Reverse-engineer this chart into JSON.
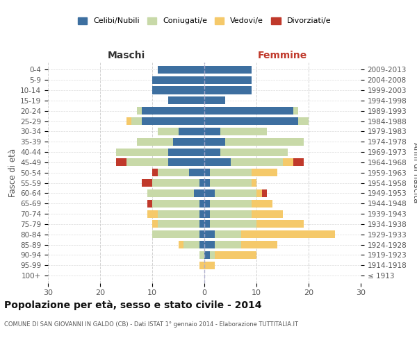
{
  "age_groups": [
    "100+",
    "95-99",
    "90-94",
    "85-89",
    "80-84",
    "75-79",
    "70-74",
    "65-69",
    "60-64",
    "55-59",
    "50-54",
    "45-49",
    "40-44",
    "35-39",
    "30-34",
    "25-29",
    "20-24",
    "15-19",
    "10-14",
    "5-9",
    "0-4"
  ],
  "birth_years": [
    "≤ 1913",
    "1914-1918",
    "1919-1923",
    "1924-1928",
    "1929-1933",
    "1934-1938",
    "1939-1943",
    "1944-1948",
    "1949-1953",
    "1954-1958",
    "1959-1963",
    "1964-1968",
    "1969-1973",
    "1974-1978",
    "1979-1983",
    "1984-1988",
    "1989-1993",
    "1994-1998",
    "1999-2003",
    "2004-2008",
    "2009-2013"
  ],
  "maschi": {
    "celibi": [
      0,
      0,
      0,
      1,
      1,
      1,
      1,
      1,
      2,
      1,
      3,
      7,
      7,
      6,
      5,
      12,
      12,
      7,
      10,
      10,
      9
    ],
    "coniugati": [
      0,
      0,
      1,
      3,
      9,
      8,
      8,
      9,
      9,
      9,
      6,
      8,
      10,
      7,
      4,
      2,
      1,
      0,
      0,
      0,
      0
    ],
    "vedovi": [
      0,
      1,
      0,
      1,
      0,
      1,
      2,
      0,
      0,
      0,
      0,
      0,
      0,
      0,
      0,
      1,
      0,
      0,
      0,
      0,
      0
    ],
    "divorziati": [
      0,
      0,
      0,
      0,
      0,
      0,
      0,
      1,
      0,
      2,
      1,
      2,
      0,
      0,
      0,
      0,
      0,
      0,
      0,
      0,
      0
    ]
  },
  "femmine": {
    "nubili": [
      0,
      0,
      1,
      2,
      2,
      1,
      1,
      1,
      2,
      1,
      1,
      5,
      3,
      4,
      3,
      18,
      17,
      4,
      9,
      9,
      9
    ],
    "coniugate": [
      0,
      0,
      1,
      5,
      5,
      9,
      8,
      8,
      8,
      8,
      8,
      10,
      13,
      15,
      9,
      2,
      1,
      0,
      0,
      0,
      0
    ],
    "vedove": [
      0,
      2,
      8,
      7,
      18,
      9,
      6,
      4,
      1,
      1,
      5,
      2,
      0,
      0,
      0,
      0,
      0,
      0,
      0,
      0,
      0
    ],
    "divorziate": [
      0,
      0,
      0,
      0,
      0,
      0,
      0,
      0,
      1,
      0,
      0,
      2,
      0,
      0,
      0,
      0,
      0,
      0,
      0,
      0,
      0
    ]
  },
  "colors": {
    "celibi_nubili": "#3d6fa0",
    "coniugati": "#c8d9a8",
    "vedovi": "#f5c96a",
    "divorziati": "#c0392b"
  },
  "title": "Popolazione per età, sesso e stato civile - 2014",
  "subtitle": "COMUNE DI SAN GIOVANNI IN GALDO (CB) - Dati ISTAT 1° gennaio 2014 - Elaborazione TUTTITALIA.IT",
  "xlabel_left": "Maschi",
  "xlabel_right": "Femmine",
  "ylabel_left": "Fasce di età",
  "ylabel_right": "Anni di nascita",
  "xlim": 30,
  "bg_color": "#ffffff",
  "grid_color": "#cccccc",
  "legend_labels": [
    "Celibi/Nubili",
    "Coniugati/e",
    "Vedovi/e",
    "Divorziati/e"
  ]
}
